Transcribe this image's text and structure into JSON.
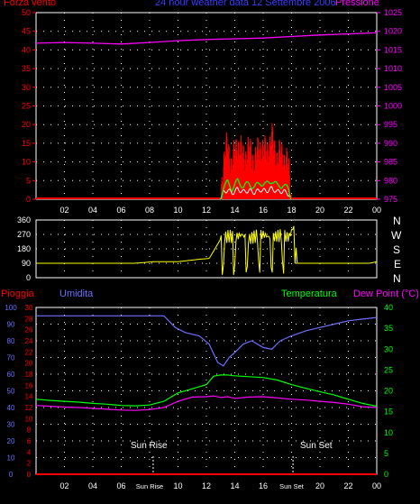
{
  "header": {
    "left": "Forza vento ",
    "center": "24 hour weather data 12 Settembre 2006",
    "right": "Pressione"
  },
  "compass": [
    "N",
    "W",
    "S",
    "E",
    "N"
  ],
  "lower_header": {
    "pioggia": "Pioggia",
    "umidita": "Umidita",
    "temperatura": "Temperatura",
    "dewpoint": "Dew Point (°C)"
  },
  "events": {
    "sunrise": "Sun Rise",
    "sunset": "Sun Set"
  },
  "colors": {
    "wind": "#ff0000",
    "gust_avg": "#00ff00",
    "wind_low": "#ffffff",
    "pressure": "#ff00ff",
    "direction": "#ffff00",
    "rain": "#ff0000",
    "humidity": "#6f6fff",
    "temperature": "#00ff00",
    "dewpoint": "#ff00ff",
    "axis_top_left": "#ff0000",
    "axis_top_right": "#ff00ff",
    "grid": "#ffffff"
  },
  "x_ticks": [
    "02",
    "04",
    "06",
    "08",
    "10",
    "12",
    "14",
    "16",
    "18",
    "20",
    "22",
    "00"
  ],
  "x_ticks_lower": [
    "02",
    "04",
    "06",
    "Sun Rise",
    "10",
    "12",
    "14",
    "16",
    "Sun Set",
    "20",
    "22",
    "00"
  ],
  "chart_data": [
    {
      "type": "line",
      "xlim": [
        0,
        24
      ],
      "ylim_left": [
        0,
        50
      ],
      "yticks_left": [
        0,
        5,
        10,
        15,
        20,
        25,
        30,
        35,
        40,
        45,
        50
      ],
      "ylim_right": [
        975,
        1025
      ],
      "yticks_right": [
        975,
        980,
        985,
        990,
        995,
        1000,
        1005,
        1010,
        1015,
        1020,
        1025
      ],
      "series": [
        {
          "name": "Forza vento",
          "axis": "left",
          "color": "#ff0000",
          "x": [
            0,
            13.0,
            13.2,
            13.5,
            13.8,
            14.2,
            14.6,
            15.0,
            15.4,
            15.8,
            16.2,
            16.6,
            17.0,
            17.4,
            17.8,
            18.0,
            24
          ],
          "y": [
            0,
            0,
            10,
            14,
            9,
            15,
            11,
            13,
            10,
            14,
            12,
            16,
            11,
            12,
            8,
            0,
            0
          ]
        },
        {
          "name": "Pressione",
          "axis": "right",
          "color": "#ff00ff",
          "x": [
            0,
            2,
            4,
            6,
            8,
            10,
            12,
            14,
            16,
            18,
            20,
            22,
            24
          ],
          "y": [
            1016.8,
            1017.0,
            1016.8,
            1016.6,
            1017.0,
            1017.5,
            1017.8,
            1018.0,
            1018.2,
            1018.6,
            1019.0,
            1019.3,
            1019.6
          ]
        }
      ]
    },
    {
      "type": "line",
      "xlim": [
        0,
        24
      ],
      "ylim": [
        0,
        360
      ],
      "yticks": [
        0,
        90,
        180,
        270,
        360
      ],
      "series": [
        {
          "name": "direction",
          "color": "#ffff00",
          "x": [
            0,
            6,
            7,
            8.3,
            10,
            11,
            11.5,
            12.2,
            13,
            13.6,
            14,
            14.5,
            15,
            15.5,
            16,
            16.5,
            17,
            17.4,
            17.8,
            18.2,
            18.4,
            19,
            20,
            22,
            23.5,
            24
          ],
          "y": [
            90,
            90,
            90,
            100,
            100,
            110,
            115,
            120,
            240,
            260,
            250,
            270,
            240,
            260,
            270,
            250,
            260,
            265,
            250,
            330,
            90,
            90,
            90,
            90,
            90,
            100
          ]
        }
      ]
    },
    {
      "type": "line",
      "xlim": [
        0,
        24
      ],
      "ylim_rain": [
        0,
        30
      ],
      "yticks_rain": [
        0,
        2,
        4,
        6,
        8,
        10,
        12,
        14,
        16,
        18,
        20,
        22,
        24,
        26,
        28,
        30
      ],
      "ylim_humidity": [
        0,
        100
      ],
      "yticks_humidity": [
        0,
        10,
        20,
        30,
        40,
        50,
        60,
        70,
        80,
        90,
        100
      ],
      "ylim_temp": [
        0,
        40
      ],
      "yticks_temp": [
        0,
        5,
        10,
        15,
        20,
        25,
        30,
        35,
        40
      ],
      "series": [
        {
          "name": "Pioggia",
          "axis": "rain",
          "color": "#ff0000",
          "x": [
            0,
            24
          ],
          "y": [
            0,
            0
          ]
        },
        {
          "name": "Umidita",
          "axis": "humidity",
          "color": "#6f6fff",
          "x": [
            0,
            2,
            4,
            6,
            7.5,
            9,
            9.8,
            10.5,
            11.5,
            12.2,
            12.8,
            13.2,
            13.6,
            14,
            14.6,
            15.2,
            16,
            16.6,
            17.2,
            18,
            19,
            20,
            21,
            22,
            23,
            24
          ],
          "y": [
            95,
            95,
            95,
            95,
            95,
            95,
            88,
            85,
            83,
            78,
            67,
            65,
            70,
            73,
            78,
            80,
            76,
            75,
            80,
            83,
            86,
            88,
            90,
            92,
            93,
            94
          ]
        },
        {
          "name": "Temperatura",
          "axis": "temp",
          "color": "#00ff00",
          "x": [
            0,
            1,
            2,
            3,
            4,
            5,
            6,
            7,
            8,
            9,
            10,
            11,
            12,
            12.5,
            13,
            13.5,
            14,
            15,
            16,
            17,
            18,
            19,
            20,
            21,
            22,
            23,
            24
          ],
          "y": [
            18,
            17.7,
            17.5,
            17.3,
            17,
            16.8,
            16.5,
            16.4,
            16.6,
            17.5,
            19.5,
            20.5,
            21.5,
            23.5,
            23.8,
            23.8,
            23.6,
            23.4,
            23.2,
            22.6,
            21.5,
            20.6,
            19.8,
            19,
            18,
            17,
            16.3
          ]
        },
        {
          "name": "Dew Point (°C)",
          "axis": "temp",
          "color": "#ff00ff",
          "x": [
            0,
            1,
            2,
            3,
            4,
            5,
            6,
            7,
            8,
            9,
            10,
            11,
            12,
            12.5,
            13,
            13.5,
            14,
            15,
            16,
            17,
            18,
            19,
            20,
            21,
            22,
            23,
            24
          ],
          "y": [
            16.5,
            16.3,
            16.1,
            16,
            15.8,
            15.6,
            15.4,
            15.3,
            15.5,
            16,
            17.5,
            18.5,
            18.6,
            18.8,
            18.4,
            18.6,
            18.2,
            18.5,
            18.6,
            18.3,
            18,
            17.8,
            17.5,
            17.2,
            16.8,
            16.2,
            16
          ]
        }
      ]
    }
  ]
}
